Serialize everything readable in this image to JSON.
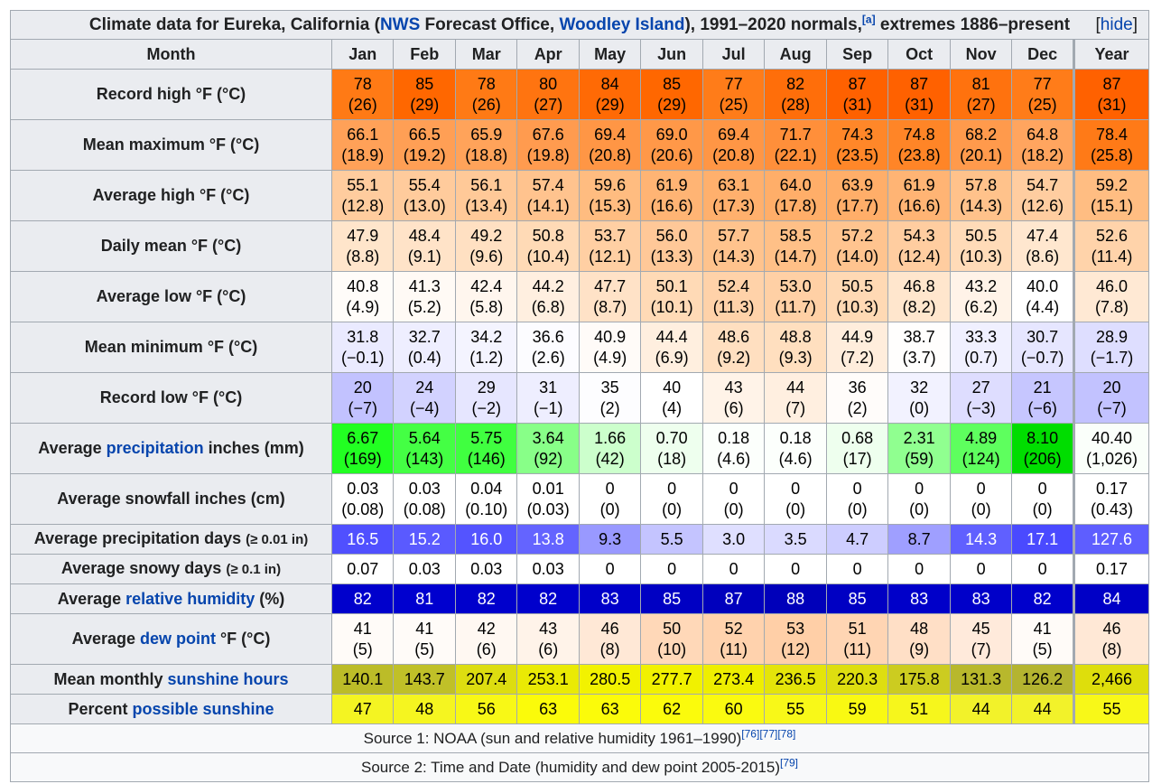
{
  "title": [
    "Climate data for Eureka, California (",
    {
      "link": "NWS"
    },
    " Forecast Office, ",
    {
      "link": "Woodley Island"
    },
    "), 1991–2020 normals,",
    {
      "sup": "[a]"
    },
    " extremes 1886–present"
  ],
  "hide": {
    "link": "hide"
  },
  "header": [
    "Month",
    "Jan",
    "Feb",
    "Mar",
    "Apr",
    "May",
    "Jun",
    "Jul",
    "Aug",
    "Sep",
    "Oct",
    "Nov",
    "Dec",
    "Year"
  ],
  "rows": [
    {
      "label": [
        "Record high °F (°C)"
      ],
      "cells": [
        "78\n(26)",
        "85\n(29)",
        "78\n(26)",
        "80\n(27)",
        "84\n(29)",
        "85\n(29)",
        "77\n(25)",
        "82\n(28)",
        "87\n(31)",
        "87\n(31)",
        "81\n(27)",
        "77\n(25)",
        "87\n(31)"
      ],
      "colors": [
        "#ff7a15",
        "#ff6700",
        "#ff7a15",
        "#ff7410",
        "#ff6a05",
        "#ff6700",
        "#ff7c19",
        "#ff6e0a",
        "#ff6100",
        "#ff6100",
        "#ff720e",
        "#ff7c19",
        "#ff6100"
      ]
    },
    {
      "label": [
        "Mean maximum °F (°C)"
      ],
      "cells": [
        "66.1\n(18.9)",
        "66.5\n(19.2)",
        "65.9\n(18.8)",
        "67.6\n(19.8)",
        "69.4\n(20.8)",
        "69.0\n(20.6)",
        "69.4\n(20.8)",
        "71.7\n(22.1)",
        "74.3\n(23.5)",
        "74.8\n(23.8)",
        "68.2\n(20.1)",
        "64.8\n(18.2)",
        "78.4\n(25.8)"
      ],
      "colors": [
        "#ffa158",
        "#ff9f55",
        "#ffa35a",
        "#ff9b4f",
        "#ff9645",
        "#ff9848",
        "#ff9645",
        "#ff8f3a",
        "#ff8729",
        "#ff8527",
        "#ff9a4c",
        "#ffa55f",
        "#ff7a17"
      ]
    },
    {
      "label": [
        "Average high °F (°C)"
      ],
      "cells": [
        "55.1\n(12.8)",
        "55.4\n(13.0)",
        "56.1\n(13.4)",
        "57.4\n(14.1)",
        "59.6\n(15.3)",
        "61.9\n(16.6)",
        "63.1\n(17.3)",
        "64.0\n(17.8)",
        "63.9\n(17.7)",
        "61.9\n(16.6)",
        "57.8\n(14.3)",
        "54.7\n(12.6)",
        "59.2\n(15.1)"
      ],
      "colors": [
        "#ffcc9e",
        "#ffcb9c",
        "#ffc998",
        "#ffc38e",
        "#ffbc80",
        "#ffb474",
        "#ffb06d",
        "#ffae69",
        "#ffae69",
        "#ffb474",
        "#ffc28b",
        "#ffcda0",
        "#ffbd82"
      ]
    },
    {
      "label": [
        "Daily mean °F (°C)"
      ],
      "cells": [
        "47.9\n(8.8)",
        "48.4\n(9.1)",
        "49.2\n(9.6)",
        "50.8\n(10.4)",
        "53.7\n(12.1)",
        "56.0\n(13.3)",
        "57.7\n(14.3)",
        "58.5\n(14.7)",
        "57.2\n(14.0)",
        "54.3\n(12.4)",
        "50.5\n(10.3)",
        "47.4\n(8.6)",
        "52.6\n(11.4)"
      ],
      "colors": [
        "#ffe5cb",
        "#ffe3c8",
        "#ffe0c2",
        "#ffdab6",
        "#ffcfa3",
        "#ffc898",
        "#ffc38d",
        "#ffc087",
        "#ffc48f",
        "#ffcda0",
        "#ffdbb8",
        "#ffe7cf",
        "#ffd3aa"
      ]
    },
    {
      "label": [
        "Average low °F (°C)"
      ],
      "cells": [
        "40.8\n(4.9)",
        "41.3\n(5.2)",
        "42.4\n(5.8)",
        "44.2\n(6.8)",
        "47.7\n(8.7)",
        "50.1\n(10.1)",
        "52.4\n(11.3)",
        "53.0\n(11.7)",
        "50.5\n(10.3)",
        "46.8\n(8.2)",
        "43.2\n(6.2)",
        "40.0\n(4.4)",
        "46.0\n(7.8)"
      ],
      "colors": [
        "#fffcf9",
        "#fffaf5",
        "#fff6ee",
        "#ffefe0",
        "#ffe2c7",
        "#ffdab6",
        "#ffd2a9",
        "#ffd0a5",
        "#ffd9b4",
        "#ffe6cd",
        "#fff3e8",
        "#ffffff",
        "#ffe9d4"
      ]
    },
    {
      "label": [
        "Mean minimum °F (°C)"
      ],
      "cells": [
        "31.8\n(−0.1)",
        "32.7\n(0.4)",
        "34.2\n(1.2)",
        "36.6\n(2.6)",
        "40.9\n(4.9)",
        "44.4\n(6.9)",
        "48.6\n(9.2)",
        "48.8\n(9.3)",
        "44.9\n(7.2)",
        "38.7\n(3.7)",
        "33.3\n(0.7)",
        "30.7\n(−0.7)",
        "28.9\n(−1.7)"
      ],
      "colors": [
        "#eaeaff",
        "#eeeeff",
        "#f4f4ff",
        "#fcfcff",
        "#fffbf8",
        "#ffefdf",
        "#ffdfc0",
        "#ffdfbf",
        "#ffeddc",
        "#fffefd",
        "#f0f0ff",
        "#e6e6ff",
        "#dedeff"
      ]
    },
    {
      "label": [
        "Record low °F (°C)"
      ],
      "cells": [
        "20\n(−7)",
        "24\n(−4)",
        "29\n(−2)",
        "31\n(−1)",
        "35\n(2)",
        "40\n(4)",
        "43\n(6)",
        "44\n(7)",
        "36\n(2)",
        "32\n(0)",
        "27\n(−3)",
        "21\n(−6)",
        "20\n(−7)"
      ],
      "colors": [
        "#c2c2ff",
        "#d2d2ff",
        "#e6e6ff",
        "#eeeeff",
        "#fdfdff",
        "#ffffff",
        "#fff3e8",
        "#ffefe0",
        "#fffcfa",
        "#f2f2ff",
        "#deddff",
        "#c6c6ff",
        "#c2c2ff"
      ]
    },
    {
      "label": [
        "Average ",
        {
          "link": "precipitation"
        },
        " inches (mm)"
      ],
      "cells": [
        "6.67\n(169)",
        "5.64\n(143)",
        "5.75\n(146)",
        "3.64\n(92)",
        "1.66\n(42)",
        "0.70\n(18)",
        "0.18\n(4.6)",
        "0.18\n(4.6)",
        "0.68\n(17)",
        "2.31\n(59)",
        "4.89\n(124)",
        "8.10\n(206)",
        "40.40\n(1,026)"
      ],
      "colors": [
        "#22ff22",
        "#44ff44",
        "#40ff40",
        "#88ff88",
        "#ccffcc",
        "#eeffee",
        "#fcfffc",
        "#fcfffc",
        "#eeffee",
        "#90ff90",
        "#5eff5e",
        "#00dd00",
        "#fafffa"
      ]
    },
    {
      "label": [
        "Average snowfall inches (cm)"
      ],
      "cells": [
        "0.03\n(0.08)",
        "0.03\n(0.08)",
        "0.04\n(0.10)",
        "0.01\n(0.03)",
        "0\n(0)",
        "0\n(0)",
        "0\n(0)",
        "0\n(0)",
        "0\n(0)",
        "0\n(0)",
        "0\n(0)",
        "0\n(0)",
        "0.17\n(0.43)"
      ],
      "colors": [
        "#ffffff",
        "#ffffff",
        "#ffffff",
        "#ffffff",
        "#ffffff",
        "#ffffff",
        "#ffffff",
        "#ffffff",
        "#ffffff",
        "#ffffff",
        "#ffffff",
        "#ffffff",
        "#ffffff"
      ]
    },
    {
      "label": [
        "Average precipitation days ",
        {
          "small": "(≥ 0.01 in)"
        }
      ],
      "cells": [
        "16.5",
        "15.2",
        "16.0",
        "13.8",
        "9.3",
        "5.5",
        "3.0",
        "3.5",
        "4.7",
        "8.7",
        "14.3",
        "17.1",
        "127.6"
      ],
      "colors": [
        "#5050ff",
        "#5a5aff",
        "#5454ff",
        "#6464ff",
        "#9999ff",
        "#c4c4ff",
        "#dfdfff",
        "#dadaff",
        "#cdcdff",
        "#9f9fff",
        "#6060ff",
        "#4a4aff",
        "#5e5eff"
      ]
    },
    {
      "label": [
        "Average snowy days ",
        {
          "small": "(≥ 0.1 in)"
        }
      ],
      "cells": [
        "0.07",
        "0.03",
        "0.03",
        "0.03",
        "0",
        "0",
        "0",
        "0",
        "0",
        "0",
        "0",
        "0",
        "0.17"
      ],
      "colors": [
        "#ffffff",
        "#ffffff",
        "#ffffff",
        "#ffffff",
        "#ffffff",
        "#ffffff",
        "#ffffff",
        "#ffffff",
        "#ffffff",
        "#ffffff",
        "#ffffff",
        "#ffffff",
        "#ffffff"
      ]
    },
    {
      "label": [
        "Average ",
        {
          "link": "relative humidity"
        },
        " (%)"
      ],
      "cells": [
        "82",
        "81",
        "82",
        "82",
        "83",
        "85",
        "87",
        "88",
        "85",
        "83",
        "83",
        "82",
        "84"
      ],
      "colors": [
        "#0000cc",
        "#0000cf",
        "#0000cc",
        "#0000cc",
        "#0000c9",
        "#0000c3",
        "#0000bd",
        "#0000ba",
        "#0000c3",
        "#0000c9",
        "#0000c9",
        "#0000cc",
        "#0000c6"
      ]
    },
    {
      "label": [
        "Average ",
        {
          "link": "dew point"
        },
        " °F (°C)"
      ],
      "cells": [
        "41\n(5)",
        "41\n(5)",
        "42\n(6)",
        "43\n(6)",
        "46\n(8)",
        "50\n(10)",
        "52\n(11)",
        "53\n(12)",
        "51\n(11)",
        "48\n(9)",
        "45\n(7)",
        "41\n(5)",
        "46\n(8)"
      ],
      "colors": [
        "#fffbf8",
        "#fffbf8",
        "#fff8f2",
        "#fff3e9",
        "#ffe8d6",
        "#ffd8b8",
        "#ffd2ad",
        "#ffcfa7",
        "#ffd5b3",
        "#ffdfc6",
        "#ffeadb",
        "#fffbf8",
        "#ffe8d6"
      ]
    },
    {
      "label": [
        "Mean monthly ",
        {
          "link": "sunshine hours"
        }
      ],
      "cells": [
        "140.1",
        "143.7",
        "207.4",
        "253.1",
        "280.5",
        "277.7",
        "273.4",
        "236.5",
        "220.3",
        "175.8",
        "131.3",
        "126.2",
        "2,466"
      ],
      "colors": [
        "#bcbc28",
        "#c0c028",
        "#dddd10",
        "#eaea04",
        "#f2f200",
        "#f1f100",
        "#eeee00",
        "#e4e40a",
        "#dede10",
        "#cccc20",
        "#b8b82c",
        "#b4b430",
        "#dede0c"
      ]
    },
    {
      "label": [
        "Percent ",
        {
          "link": "possible sunshine"
        }
      ],
      "cells": [
        "47",
        "48",
        "56",
        "63",
        "63",
        "62",
        "60",
        "55",
        "59",
        "51",
        "44",
        "44",
        "55"
      ],
      "colors": [
        "#f4f422",
        "#f5f520",
        "#f8f816",
        "#fbfb0a",
        "#fbfb0a",
        "#fbfb0c",
        "#fafa10",
        "#f8f818",
        "#f9f912",
        "#f6f61c",
        "#f2f22a",
        "#f2f22a",
        "#f8f818"
      ]
    }
  ],
  "sources": [
    [
      "Source 1: NOAA (sun and relative humidity 1961–1990)",
      {
        "sup": "[76][77][78]"
      }
    ],
    [
      "Source 2: Time and Date (humidity and dew point 2005-2015)",
      {
        "sup": "[79]"
      }
    ]
  ]
}
